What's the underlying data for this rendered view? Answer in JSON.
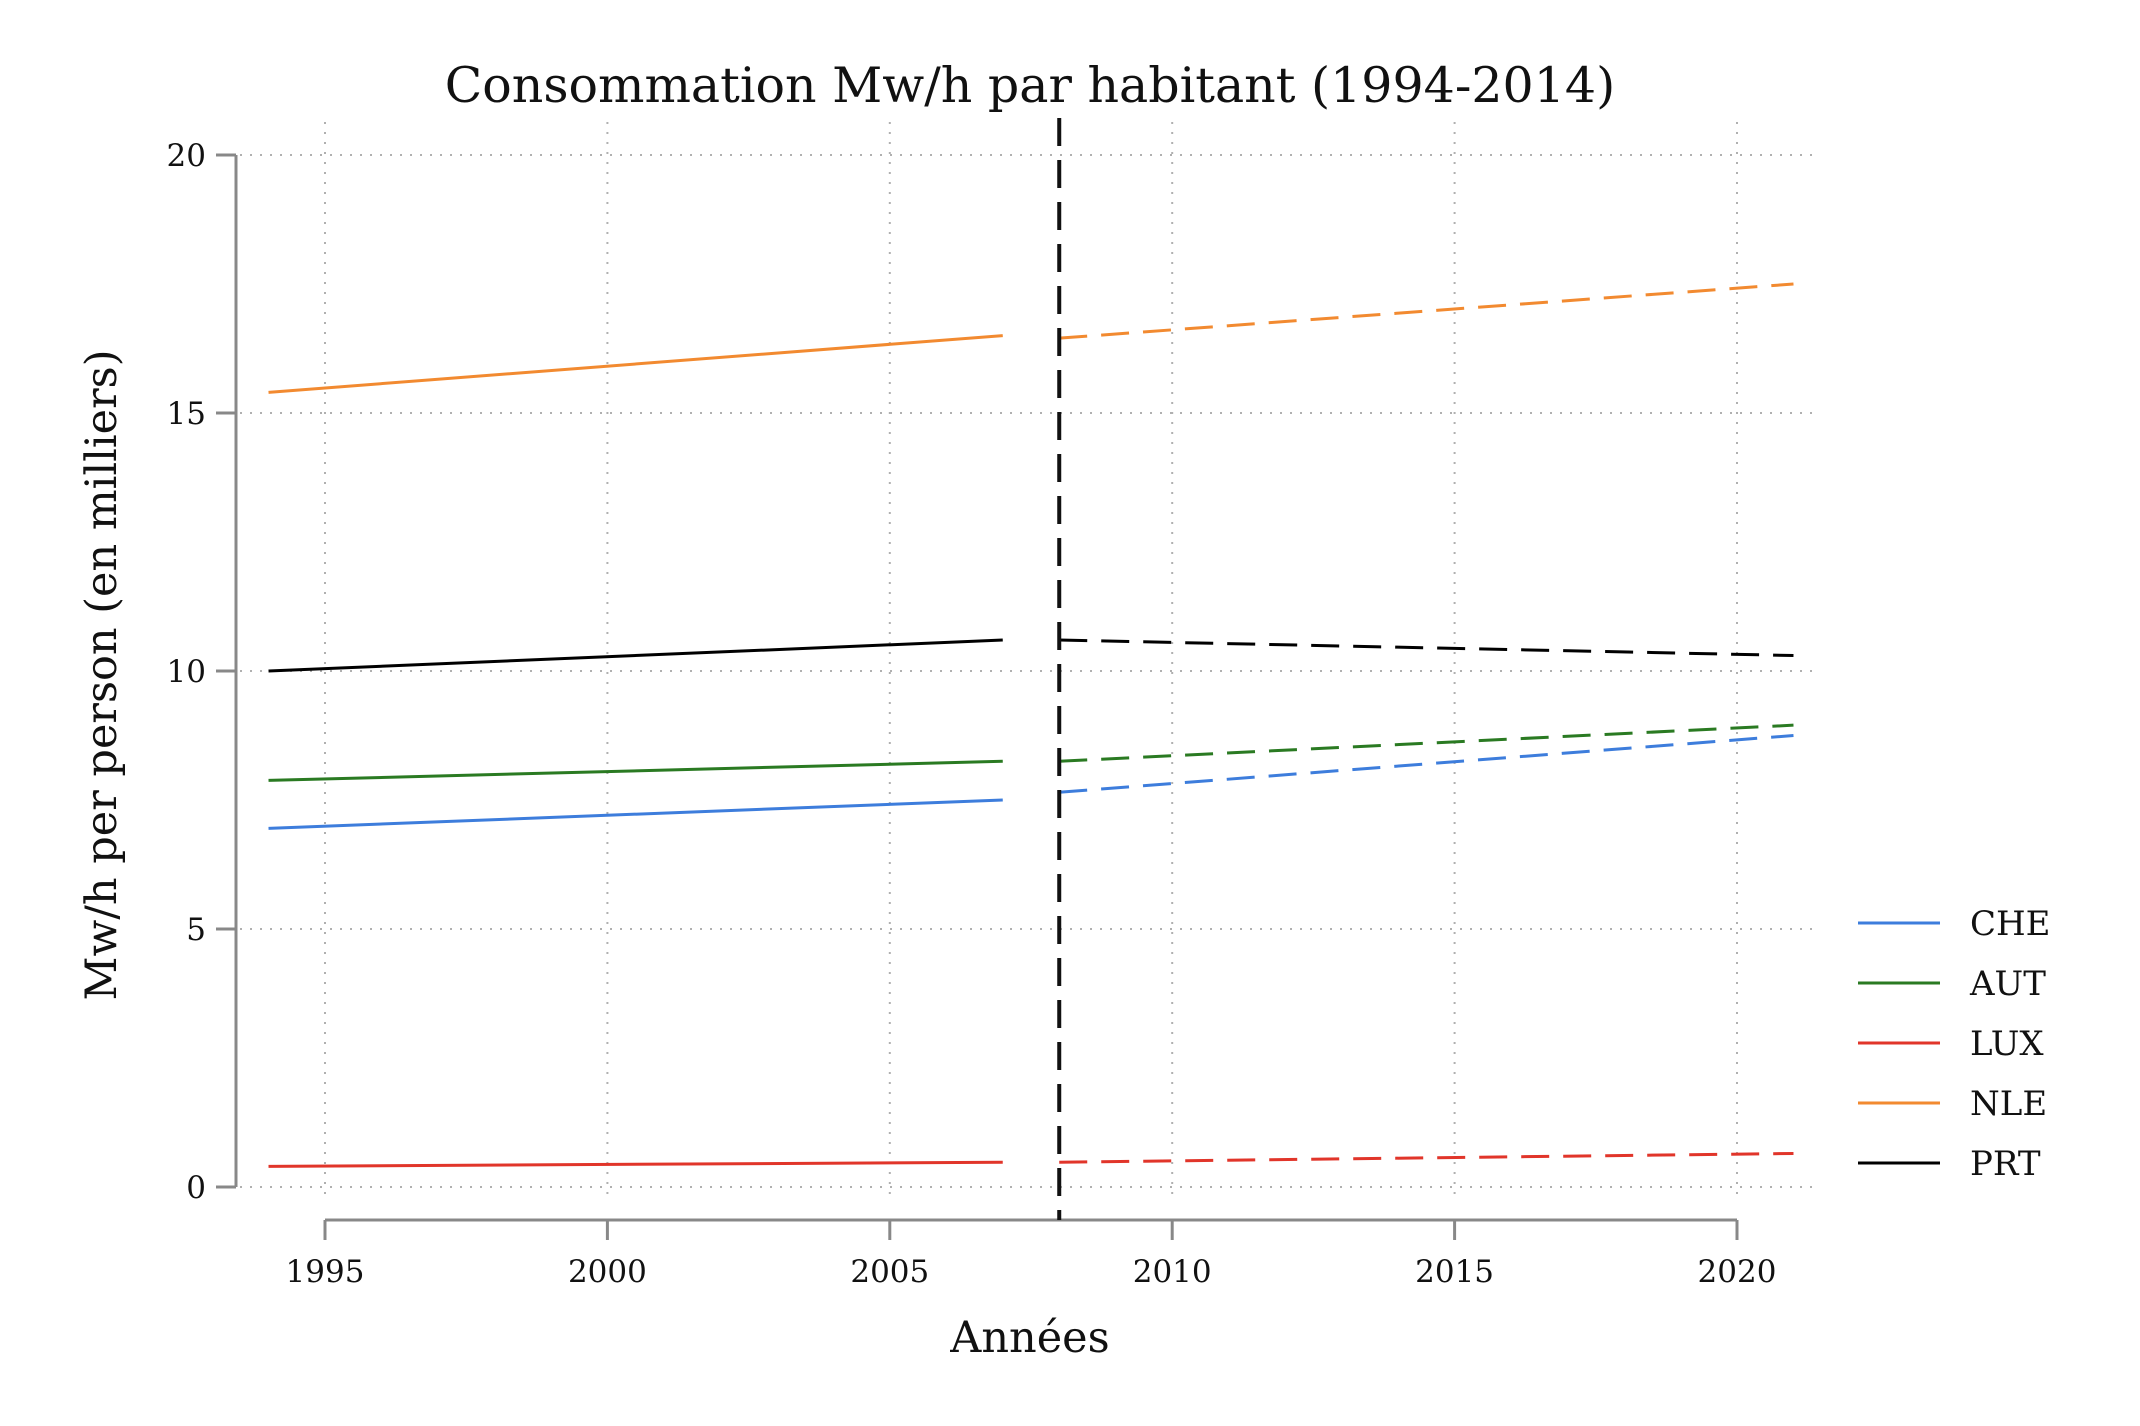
{
  "chart_data": {
    "type": "line",
    "title": "Consommation Mw/h par habitant (1994-2014)",
    "xlabel": "Années",
    "ylabel": "Mw/h per person (en milliers)",
    "xlim": [
      1993,
      2021.5
    ],
    "ylim": [
      0,
      20
    ],
    "xticks": [
      1995,
      2000,
      2005,
      2010,
      2015,
      2020
    ],
    "yticks": [
      0,
      5,
      10,
      15,
      20
    ],
    "grid": true,
    "grid_style": "dotted",
    "legend_position": "right",
    "cutoff_x": 2008,
    "cutoff_style": "dashed",
    "series": [
      {
        "name": "CHE",
        "color": "#3d7ddc",
        "observed": {
          "x": [
            1994,
            2007
          ],
          "y": [
            6.95,
            7.5
          ]
        },
        "projected": {
          "x": [
            2008,
            2021
          ],
          "y": [
            7.65,
            8.75
          ]
        }
      },
      {
        "name": "AUT",
        "color": "#2a7a22",
        "observed": {
          "x": [
            1994,
            2007
          ],
          "y": [
            7.88,
            8.25
          ]
        },
        "projected": {
          "x": [
            2008,
            2021
          ],
          "y": [
            8.25,
            8.95
          ]
        }
      },
      {
        "name": "LUX",
        "color": "#e1352a",
        "observed": {
          "x": [
            1994,
            2007
          ],
          "y": [
            0.4,
            0.48
          ]
        },
        "projected": {
          "x": [
            2008,
            2021
          ],
          "y": [
            0.48,
            0.65
          ]
        }
      },
      {
        "name": "NLE",
        "color": "#f28a30",
        "observed": {
          "x": [
            1994,
            2007
          ],
          "y": [
            15.4,
            16.5
          ]
        },
        "projected": {
          "x": [
            2008,
            2021
          ],
          "y": [
            16.45,
            17.5
          ]
        }
      },
      {
        "name": "PRT",
        "color": "#000000",
        "observed": {
          "x": [
            1994,
            2007
          ],
          "y": [
            10.0,
            10.6
          ]
        },
        "projected": {
          "x": [
            2008,
            2021
          ],
          "y": [
            10.6,
            10.3
          ]
        }
      }
    ]
  }
}
